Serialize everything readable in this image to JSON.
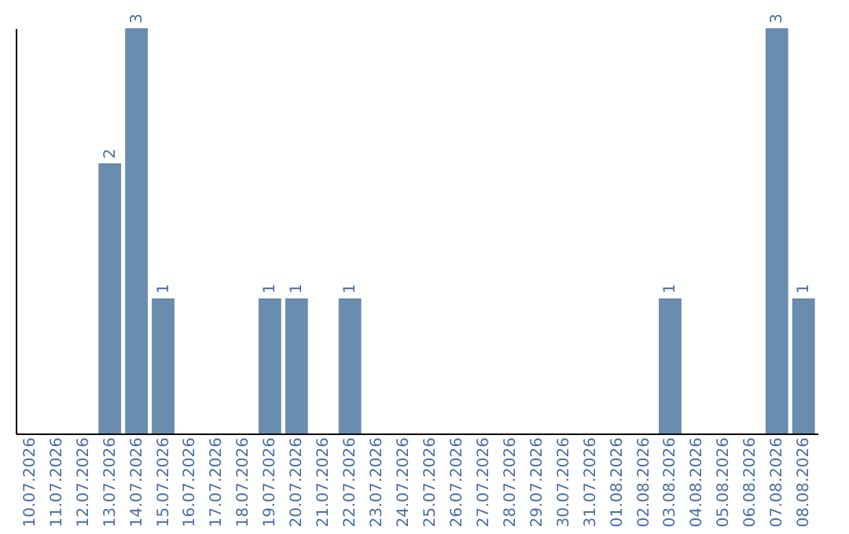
{
  "chart_data": {
    "type": "bar",
    "categories": [
      "10.07.2026",
      "11.07.2026",
      "12.07.2026",
      "13.07.2026",
      "14.07.2026",
      "15.07.2026",
      "16.07.2026",
      "17.07.2026",
      "18.07.2026",
      "19.07.2026",
      "20.07.2026",
      "21.07.2026",
      "22.07.2026",
      "23.07.2026",
      "24.07.2026",
      "25.07.2026",
      "26.07.2026",
      "27.07.2026",
      "28.07.2026",
      "29.07.2026",
      "30.07.2026",
      "31.07.2026",
      "01.08.2026",
      "02.08.2026",
      "03.08.2026",
      "04.08.2026",
      "05.08.2026",
      "06.08.2026",
      "07.08.2026",
      "08.08.2026"
    ],
    "values": [
      0,
      0,
      0,
      2,
      3,
      1,
      0,
      0,
      0,
      1,
      1,
      0,
      1,
      0,
      0,
      0,
      0,
      0,
      0,
      0,
      0,
      0,
      0,
      0,
      1,
      0,
      0,
      0,
      3,
      1
    ],
    "value_labels": [
      null,
      null,
      null,
      "2",
      "3",
      "1",
      null,
      null,
      null,
      "1",
      "1",
      null,
      "1",
      null,
      null,
      null,
      null,
      null,
      null,
      null,
      null,
      null,
      null,
      null,
      "1",
      null,
      null,
      null,
      "3",
      "1"
    ],
    "color": "#6a8caf",
    "ylim": [
      0,
      3
    ],
    "tick_labels": "x"
  }
}
